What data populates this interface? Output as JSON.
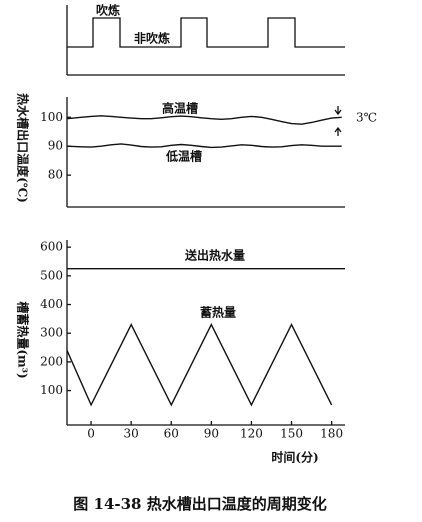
{
  "schedule": {
    "blow_label": "吹炼",
    "idle_label": "非吹炼"
  },
  "caption": "图 14-38   热水槽出口温度的周期变化",
  "chart_data": [
    {
      "type": "line",
      "ylabel": "热水槽出口温度(℃)",
      "annotation": "3℃",
      "xlim": [
        -18,
        190
      ],
      "ylim": [
        69,
        107
      ],
      "yticks": [
        80,
        90,
        100
      ],
      "x": [
        -18,
        -7.5,
        0,
        7.5,
        15,
        22.5,
        30,
        37.5,
        45,
        52.5,
        60,
        67.5,
        75,
        82.5,
        90,
        97.5,
        105,
        112.5,
        120,
        127.5,
        135,
        142.5,
        150,
        157.5,
        165,
        172.5,
        180,
        187.5
      ],
      "series": [
        {
          "name": "高温槽",
          "color": "#111",
          "values": [
            99.5,
            100,
            100.3,
            100.5,
            100.3,
            100,
            99.7,
            99.5,
            99.5,
            99.8,
            100.2,
            100.4,
            100.2,
            99.8,
            99.5,
            99.3,
            99.5,
            100,
            100.3,
            100,
            99.3,
            98.5,
            97.8,
            97.6,
            98.2,
            99,
            99.7,
            100
          ]
        },
        {
          "name": "低温槽",
          "color": "#111",
          "values": [
            90,
            89.8,
            89.7,
            90,
            90.5,
            90.8,
            90.4,
            89.9,
            89.7,
            89.8,
            90.3,
            90.6,
            90.3,
            89.9,
            89.6,
            89.7,
            90.1,
            90.5,
            90.3,
            89.9,
            89.7,
            89.8,
            90.2,
            90.5,
            90.3,
            90,
            90,
            90
          ]
        }
      ]
    },
    {
      "type": "line",
      "ylabel": "槽蓄热量(m³)",
      "xlabel": "时间(分)",
      "xlim": [
        -18,
        190
      ],
      "ylim": [
        -20,
        625
      ],
      "xticks": [
        0,
        30,
        60,
        90,
        120,
        150,
        180
      ],
      "yticks": [
        100,
        200,
        300,
        400,
        500,
        600
      ],
      "x": [
        -18,
        0,
        30,
        60,
        90,
        120,
        150,
        180,
        190
      ],
      "series": [
        {
          "name": "送出热水量",
          "color": "#111",
          "values": [
            525,
            525,
            525,
            525,
            525,
            525,
            525,
            525,
            525
          ]
        },
        {
          "name": "蓄热量",
          "color": "#111",
          "values": [
            240,
            50,
            330,
            50,
            330,
            50,
            330,
            50,
            null
          ]
        }
      ]
    }
  ]
}
